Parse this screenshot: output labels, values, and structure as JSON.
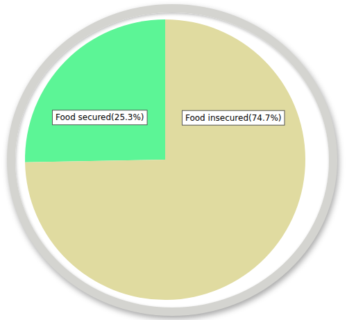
{
  "chart_data": {
    "type": "pie",
    "categories": [
      "Food secured(25.3%)",
      "Food insecured(74.7%)"
    ],
    "values": [
      25.3,
      74.7
    ],
    "colors": [
      "#5cf596",
      "#e0dba0"
    ]
  }
}
